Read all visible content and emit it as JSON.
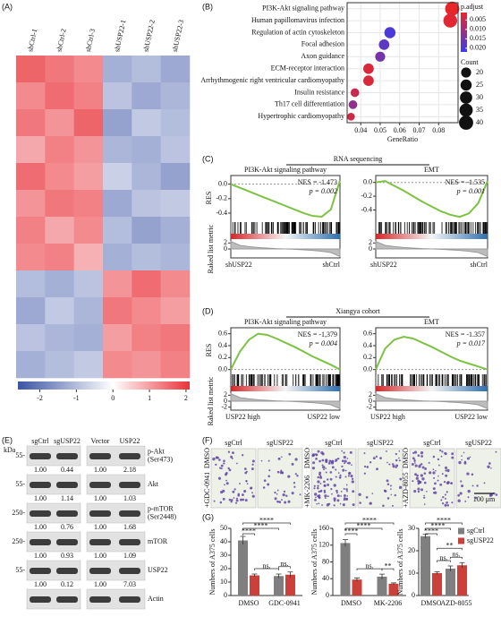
{
  "chart_data": [
    {
      "type": "heatmap",
      "panel_label": "(A)",
      "columns": [
        "shCtrl-1",
        "shCtrl-2",
        "shCtrl-3",
        "shUSP22-1",
        "shUSP22-2",
        "shUSP22-3"
      ],
      "values": [
        [
          1.6,
          1.4,
          1.2,
          -1.2,
          -1.0,
          -1.3
        ],
        [
          1.2,
          1.5,
          1.3,
          -0.9,
          -1.3,
          -1.1
        ],
        [
          1.4,
          1.1,
          1.6,
          -1.4,
          -0.8,
          -1.0
        ],
        [
          0.9,
          1.3,
          1.1,
          -1.1,
          -1.2,
          -0.9
        ],
        [
          1.5,
          1.2,
          1.0,
          -0.7,
          -1.1,
          -1.4
        ],
        [
          1.1,
          1.4,
          1.3,
          -1.3,
          -0.9,
          -0.8
        ],
        [
          1.3,
          0.9,
          1.2,
          -1.0,
          -1.4,
          -1.2
        ],
        [
          1.2,
          1.3,
          0.8,
          -1.2,
          -1.0,
          -1.1
        ],
        [
          -1.0,
          -1.2,
          -0.9,
          1.1,
          1.5,
          1.2
        ],
        [
          -1.3,
          -0.8,
          -1.1,
          1.4,
          1.2,
          1.0
        ],
        [
          -0.9,
          -1.1,
          -1.2,
          1.0,
          1.3,
          1.4
        ],
        [
          -1.2,
          -1.0,
          -0.8,
          1.2,
          1.1,
          1.3
        ]
      ],
      "clim": [
        -2.6,
        2.1
      ],
      "cticks": [
        -2,
        -1,
        0,
        1,
        2
      ],
      "colors": [
        "#3a53a4",
        "#ffffff",
        "#e8333a"
      ]
    },
    {
      "type": "dot",
      "panel_label": "(B)",
      "categories": [
        "PI3K-Akt signaling pathway",
        "Human papillomavirus infection",
        "Regulation of actin cytoskeleton",
        "Focal adhesion",
        "Axon guidance",
        "ECM-receptor interaction",
        "Arrhythmogenic right ventricular cardiomyopathy",
        "Insulin resistance",
        "Th17 cell differentiation",
        "Hypertrophic cardiomyopathy"
      ],
      "label_colors": [
        "#e8262a",
        "#111111",
        "#111111",
        "#111111",
        "#111111",
        "#111111",
        "#111111",
        "#111111",
        "#111111",
        "#111111"
      ],
      "x": [
        0.087,
        0.086,
        0.055,
        0.052,
        0.05,
        0.044,
        0.044,
        0.037,
        0.036,
        0.035
      ],
      "count": [
        40,
        38,
        25,
        22,
        20,
        22,
        22,
        15,
        15,
        12
      ],
      "p_adjust": [
        0.001,
        0.002,
        0.02,
        0.018,
        0.015,
        0.003,
        0.003,
        0.005,
        0.012,
        0.004
      ],
      "xlim": [
        0.033,
        0.09
      ],
      "xticks": [
        0.04,
        0.05,
        0.06,
        0.07,
        0.08
      ],
      "xlabel": "GeneRatio",
      "color_title": "p.adjust",
      "clim": [
        0.001,
        0.022
      ],
      "cticks": [
        0.005,
        {
          "value": 0.01,
          "label": "0.010"
        },
        0.015,
        {
          "value": 0.02,
          "label": "0.020"
        }
      ],
      "colors": [
        "#e8262a",
        "#3c3ce8"
      ],
      "size_title": "Count",
      "size_ticks": [
        20,
        25,
        30,
        35,
        40
      ]
    },
    {
      "type": "gsea",
      "panel_label": "(C)",
      "section": "RNA sequencing",
      "title": "PI3K-Akt signaling pathway",
      "nes": "NES = -1.473",
      "p": "p = 0.002",
      "ylabel": "RES",
      "metric_label": "Raked list metric",
      "color": "#7dc242",
      "values": [
        0,
        -0.05,
        -0.1,
        -0.15,
        -0.2,
        -0.25,
        -0.3,
        -0.35,
        -0.4,
        -0.44,
        -0.45,
        -0.35,
        0.05
      ],
      "ylim": [
        -0.5,
        0.12
      ],
      "yticks": [
        {
          "value": 0,
          "label": "0.0"
        },
        -0.2,
        -0.4
      ],
      "metric": [
        2.5,
        1.2,
        0.8,
        0.5,
        0.3,
        0.1,
        0,
        -0.1,
        -0.3,
        -0.5,
        -0.8,
        -1.2,
        -2.5
      ],
      "metric_lim": [
        -3,
        3
      ],
      "metric_ticks": [
        2,
        0
      ],
      "left_group": "shUSP22",
      "right_group": "shCtrl",
      "left_color": "#2e4fa8",
      "right_color": "#d8262a"
    },
    {
      "type": "gsea",
      "title": "EMT",
      "nes": "NES = -1.535",
      "p": "p = 0.001",
      "color": "#7dc242",
      "values": [
        0,
        0.02,
        -0.05,
        -0.12,
        -0.2,
        -0.28,
        -0.35,
        -0.42,
        -0.47,
        -0.5,
        -0.45,
        -0.3,
        0.02
      ],
      "ylim": [
        -0.55,
        0.1
      ],
      "yticks": [
        {
          "value": 0,
          "label": "0.0"
        },
        -0.2,
        -0.4
      ],
      "metric": [
        2.5,
        1.2,
        0.8,
        0.5,
        0.3,
        0.1,
        0,
        -0.1,
        -0.3,
        -0.5,
        -0.8,
        -1.2,
        -2.5
      ],
      "metric_lim": [
        -3,
        3
      ],
      "metric_ticks": [
        2,
        0
      ],
      "left_group": "shUSP22",
      "right_group": "shCtrl",
      "left_color": "#2e4fa8",
      "right_color": "#d8262a"
    },
    {
      "type": "gsea",
      "panel_label": "(D)",
      "section": "Xiangya cohort",
      "title": "PI3K-Akt signaling pathway",
      "nes": "NES = -1,379",
      "p": "p = 0.004",
      "ylabel": "RES",
      "metric_label": "Raked list metric",
      "color": "#7dc242",
      "values": [
        0,
        0.3,
        0.5,
        0.6,
        0.58,
        0.52,
        0.45,
        0.38,
        0.3,
        0.22,
        0.15,
        0.08,
        0
      ],
      "ylim": [
        -0.05,
        0.7
      ],
      "yticks": [
        0.6,
        0.4,
        0.2,
        {
          "value": 0,
          "label": "0.0"
        }
      ],
      "metric": [
        2.5,
        1.2,
        0.8,
        0.5,
        0.3,
        0.1,
        0,
        -0.1,
        -0.3,
        -0.5,
        -0.8,
        -1.2,
        -2.5
      ],
      "metric_lim": [
        -3,
        3
      ],
      "metric_ticks": [
        2,
        0,
        -2
      ],
      "left_group": "USP22 high",
      "right_group": "USP22 low",
      "left_color": "#d8262a",
      "right_color": "#2e4fa8"
    },
    {
      "type": "gsea",
      "title": "EMT",
      "nes": "NES = -1.357",
      "p": "p = 0.017",
      "color": "#7dc242",
      "values": [
        0,
        0.35,
        0.5,
        0.55,
        0.52,
        0.45,
        0.38,
        0.3,
        0.22,
        0.15,
        0.1,
        0.05,
        0
      ],
      "ylim": [
        -0.05,
        0.7
      ],
      "yticks": [
        0.6,
        0.4,
        0.2,
        {
          "value": 0,
          "label": "0.0"
        }
      ],
      "metric": [
        2.5,
        1.2,
        0.8,
        0.5,
        0.3,
        0.1,
        0,
        -0.1,
        -0.3,
        -0.5,
        -0.8,
        -1.2,
        -2.5
      ],
      "metric_lim": [
        -3,
        3
      ],
      "metric_ticks": [
        2,
        0,
        -2
      ],
      "left_group": "USP22 high",
      "right_group": "USP22 low",
      "left_color": "#d8262a",
      "right_color": "#2e4fa8"
    },
    {
      "type": "bar",
      "panel_label": "(G)",
      "ylabel": "Numbers of A375 cells",
      "categories": [
        "DMSO",
        "GDC-0941"
      ],
      "series": [
        {
          "color": "#7f7f7f",
          "values": [
            41,
            14.5
          ],
          "errors": [
            3,
            1.5
          ]
        },
        {
          "color": "#c9413a",
          "values": [
            15,
            15.5
          ],
          "errors": [
            1,
            2
          ]
        }
      ],
      "ylim": [
        0,
        50
      ],
      "yticks": [
        0,
        10,
        20,
        30,
        40,
        50
      ],
      "significance": [
        "****",
        "****",
        "****",
        "ns.",
        "ns."
      ]
    },
    {
      "type": "bar",
      "ylabel": "Numbers of A375 cells",
      "categories": [
        "DMSO",
        "MK-2206"
      ],
      "series": [
        {
          "color": "#7f7f7f",
          "values": [
            125,
            45
          ],
          "errors": [
            8,
            6
          ]
        },
        {
          "color": "#c9413a",
          "values": [
            38,
            28
          ],
          "errors": [
            4,
            2
          ]
        }
      ],
      "ylim": [
        0,
        160
      ],
      "yticks": [
        0,
        40,
        80,
        120,
        160
      ],
      "significance": [
        "****",
        "****",
        "****",
        "ns.",
        "**"
      ]
    },
    {
      "type": "bar",
      "ylabel": "Numbers of A375 cells",
      "categories": [
        "DMSO",
        "AZD-8055"
      ],
      "series": [
        {
          "name": "sgCtrl",
          "color": "#7f7f7f",
          "values": [
            26.5,
            12
          ],
          "errors": [
            0.8,
            1.2
          ]
        },
        {
          "name": "sgUSP22",
          "color": "#c9413a",
          "values": [
            10,
            13.5
          ],
          "errors": [
            0.6,
            1.2
          ]
        }
      ],
      "ylim": [
        0,
        30
      ],
      "yticks": [
        0,
        10,
        20,
        30
      ],
      "significance": [
        "****",
        "****",
        "****",
        "**",
        "ns.",
        "ns."
      ],
      "legend": "right"
    }
  ],
  "western": {
    "panel_label": "(E)",
    "unit": "kDa",
    "lanes": [
      [
        "sgCtrl",
        "sgUSP22"
      ],
      [
        "Vector",
        "USP22"
      ]
    ],
    "rows": [
      {
        "marker": "55-",
        "label": [
          "p-Akt",
          "(Ser473)"
        ],
        "quant": [
          [
            "1.00",
            "0.44"
          ],
          [
            "1.00",
            "2.18"
          ]
        ]
      },
      {
        "marker": "55-",
        "label": [
          "Akt"
        ],
        "quant": [
          [
            "1.00",
            "1.14"
          ],
          [
            "1.00",
            "1.03"
          ]
        ]
      },
      {
        "marker": "250-",
        "label": [
          "p-mTOR",
          "(Ser2448)"
        ],
        "quant": [
          [
            "1.00",
            "0.76"
          ],
          [
            "1.00",
            "1.68"
          ]
        ]
      },
      {
        "marker": "250-",
        "label": [
          "mTOR"
        ],
        "quant": [
          [
            "1.00",
            "0.93"
          ],
          [
            "1.00",
            "1.09"
          ]
        ]
      },
      {
        "marker": "55-",
        "label": [
          "USP22"
        ],
        "quant": [
          [
            "1.00",
            "0.12"
          ],
          [
            "1.00",
            "7.03"
          ]
        ]
      },
      {
        "label": [
          "Actin"
        ]
      }
    ]
  },
  "invasion": {
    "panel_label": "(F)",
    "columns": [
      "sgCtrl",
      "sgUSP22"
    ],
    "groups": [
      {
        "control": "DMSO",
        "drug": "+GDC-0941"
      },
      {
        "control": "DMSO",
        "drug": "+MK-2206"
      },
      {
        "control": "DMSO",
        "drug": "+AZD-8055"
      }
    ],
    "scale_bar": "100 μm"
  }
}
